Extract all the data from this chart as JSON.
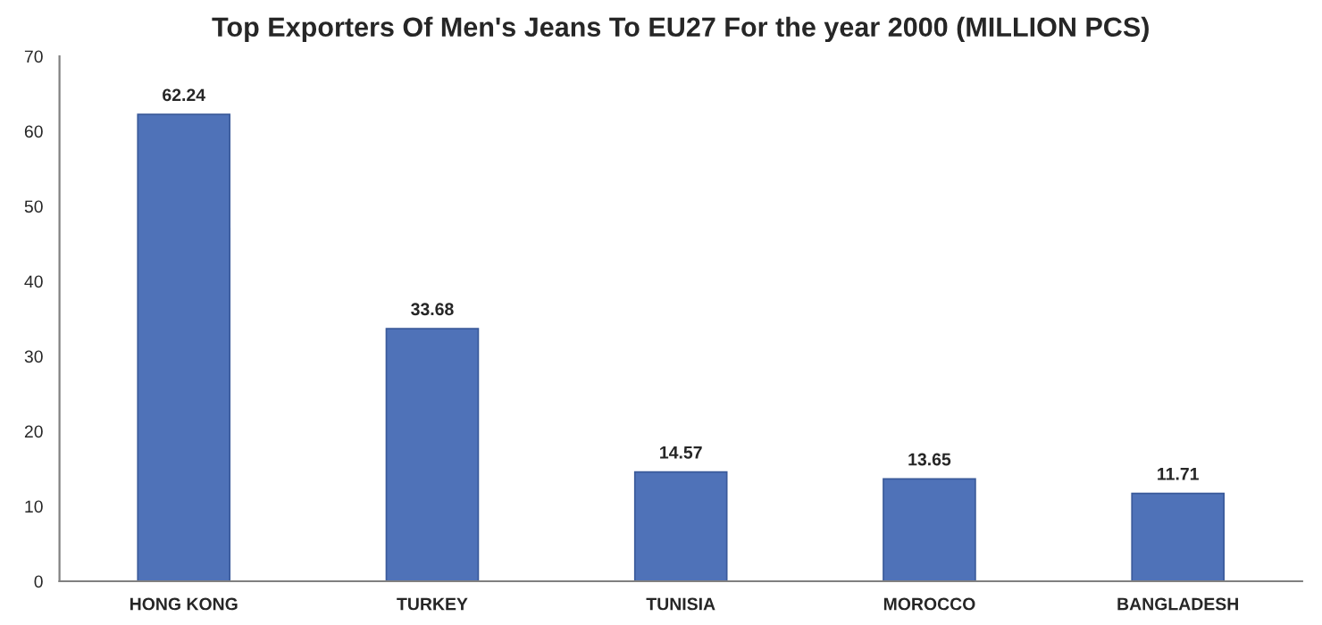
{
  "chart_data": {
    "type": "bar",
    "title": "Top Exporters Of Men's Jeans To EU27 For the year 2000 (MILLION PCS)",
    "categories": [
      "HONG KONG",
      "TURKEY",
      "TUNISIA",
      "MOROCCO",
      "BANGLADESH"
    ],
    "values": [
      62.24,
      33.68,
      14.57,
      13.65,
      11.71
    ],
    "color": "#4f72b8",
    "ylim": [
      0,
      70
    ],
    "yticks": [
      0,
      10,
      20,
      30,
      40,
      50,
      60,
      70
    ],
    "data_labels": true,
    "grid": false
  }
}
